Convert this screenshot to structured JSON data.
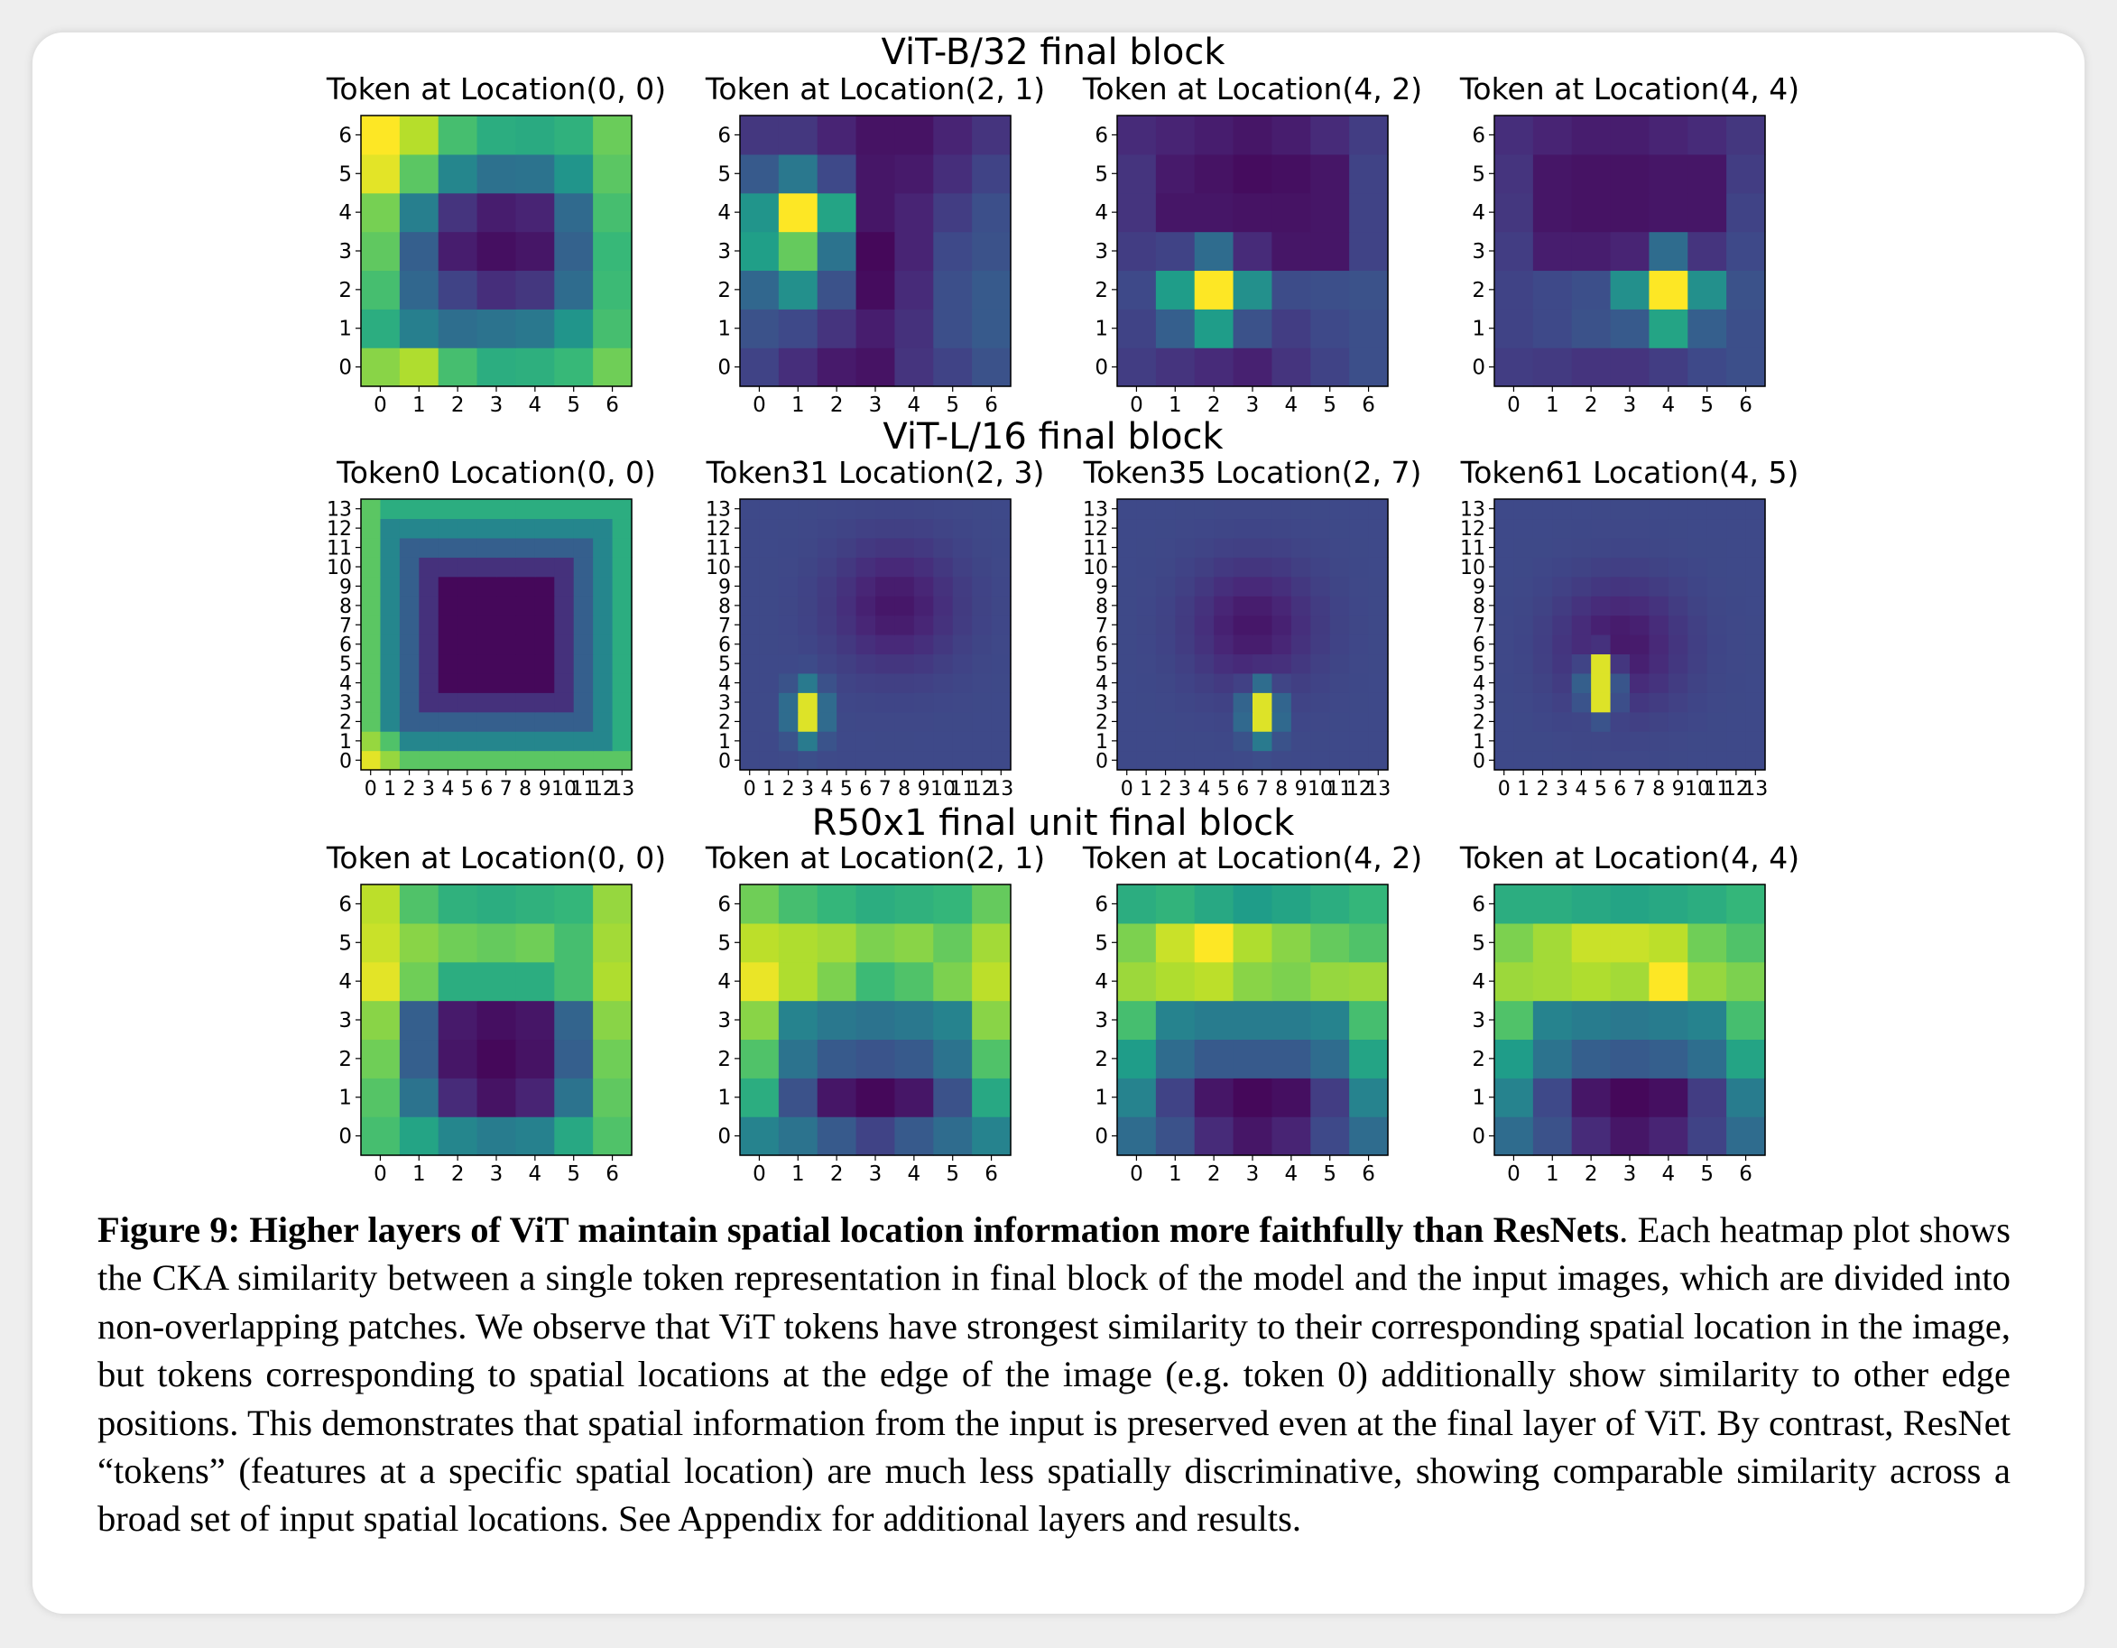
{
  "colors": {
    "background": "#ffffff",
    "page": "#eeeeee",
    "colormap": "viridis"
  },
  "chart_data": [
    {
      "type": "heatmap",
      "block": "ViT-B/32 final block",
      "grid": 7,
      "title": "Token at Location(0, 0)",
      "values": [
        [
          0.82,
          0.88,
          0.7,
          0.62,
          0.63,
          0.67,
          0.78
        ],
        [
          0.62,
          0.43,
          0.36,
          0.38,
          0.4,
          0.52,
          0.7
        ],
        [
          0.7,
          0.33,
          0.2,
          0.13,
          0.16,
          0.35,
          0.68
        ],
        [
          0.75,
          0.3,
          0.08,
          0.04,
          0.06,
          0.31,
          0.67
        ],
        [
          0.79,
          0.43,
          0.15,
          0.08,
          0.1,
          0.34,
          0.7
        ],
        [
          0.96,
          0.74,
          0.46,
          0.37,
          0.38,
          0.52,
          0.74
        ],
        [
          1.0,
          0.89,
          0.7,
          0.62,
          0.61,
          0.64,
          0.77
        ]
      ]
    },
    {
      "type": "heatmap",
      "block": "ViT-B/32 final block",
      "grid": 7,
      "title": "Token at Location(2, 1)",
      "values": [
        [
          0.2,
          0.13,
          0.07,
          0.05,
          0.15,
          0.2,
          0.25
        ],
        [
          0.25,
          0.22,
          0.15,
          0.08,
          0.14,
          0.24,
          0.28
        ],
        [
          0.33,
          0.5,
          0.25,
          0.03,
          0.12,
          0.24,
          0.28
        ],
        [
          0.56,
          0.76,
          0.38,
          0.02,
          0.1,
          0.22,
          0.25
        ],
        [
          0.52,
          1.0,
          0.58,
          0.06,
          0.1,
          0.18,
          0.24
        ],
        [
          0.28,
          0.4,
          0.22,
          0.06,
          0.07,
          0.13,
          0.2
        ],
        [
          0.16,
          0.16,
          0.1,
          0.05,
          0.05,
          0.1,
          0.15
        ]
      ]
    },
    {
      "type": "heatmap",
      "block": "ViT-B/32 final block",
      "grid": 7,
      "title": "Token at Location(4, 2)",
      "values": [
        [
          0.18,
          0.15,
          0.12,
          0.09,
          0.15,
          0.2,
          0.24
        ],
        [
          0.2,
          0.3,
          0.55,
          0.25,
          0.18,
          0.22,
          0.24
        ],
        [
          0.22,
          0.55,
          1.0,
          0.5,
          0.23,
          0.24,
          0.25
        ],
        [
          0.18,
          0.2,
          0.35,
          0.12,
          0.06,
          0.06,
          0.2
        ],
        [
          0.15,
          0.06,
          0.06,
          0.05,
          0.05,
          0.06,
          0.2
        ],
        [
          0.15,
          0.07,
          0.05,
          0.03,
          0.04,
          0.06,
          0.2
        ],
        [
          0.12,
          0.1,
          0.08,
          0.06,
          0.08,
          0.12,
          0.18
        ]
      ]
    },
    {
      "type": "heatmap",
      "block": "ViT-B/32 final block",
      "grid": 7,
      "title": "Token at Location(4, 4)",
      "values": [
        [
          0.18,
          0.17,
          0.15,
          0.15,
          0.18,
          0.22,
          0.24
        ],
        [
          0.2,
          0.22,
          0.25,
          0.28,
          0.58,
          0.3,
          0.24
        ],
        [
          0.2,
          0.22,
          0.24,
          0.5,
          1.0,
          0.5,
          0.25
        ],
        [
          0.18,
          0.08,
          0.08,
          0.1,
          0.35,
          0.15,
          0.22
        ],
        [
          0.16,
          0.06,
          0.05,
          0.05,
          0.06,
          0.06,
          0.2
        ],
        [
          0.15,
          0.06,
          0.05,
          0.05,
          0.06,
          0.06,
          0.18
        ],
        [
          0.13,
          0.1,
          0.08,
          0.08,
          0.1,
          0.12,
          0.16
        ]
      ]
    },
    {
      "type": "heatmap",
      "block": "ViT-L/16 final block",
      "grid": 14,
      "title": "Token0 Location(0, 0)",
      "pattern": {
        "kind": "edge-ring",
        "corner": [
          0,
          0
        ]
      }
    },
    {
      "type": "heatmap",
      "block": "ViT-L/16 final block",
      "grid": 14,
      "title": "Token31 Location(2, 3)",
      "pattern": {
        "kind": "peak",
        "center": [
          3,
          2.5
        ],
        "dark_center": [
          7.5,
          8
        ]
      }
    },
    {
      "type": "heatmap",
      "block": "ViT-L/16 final block",
      "grid": 14,
      "title": "Token35 Location(2, 7)",
      "pattern": {
        "kind": "peak",
        "center": [
          7,
          2.5
        ],
        "dark_center": [
          6.5,
          7
        ]
      }
    },
    {
      "type": "heatmap",
      "block": "ViT-L/16 final block",
      "grid": 14,
      "title": "Token61 Location(4, 5)",
      "pattern": {
        "kind": "peak",
        "center": [
          5,
          4
        ],
        "dark_center": [
          6,
          6
        ]
      }
    },
    {
      "type": "heatmap",
      "block": "R50x1 final unit final block",
      "grid": 7,
      "title": "Token at Location(0, 0)",
      "values": [
        [
          0.7,
          0.58,
          0.46,
          0.42,
          0.44,
          0.6,
          0.72
        ],
        [
          0.73,
          0.38,
          0.12,
          0.05,
          0.1,
          0.38,
          0.75
        ],
        [
          0.78,
          0.3,
          0.06,
          0.02,
          0.05,
          0.3,
          0.78
        ],
        [
          0.82,
          0.3,
          0.07,
          0.04,
          0.06,
          0.32,
          0.82
        ],
        [
          0.96,
          0.78,
          0.62,
          0.62,
          0.62,
          0.7,
          0.88
        ],
        [
          0.92,
          0.82,
          0.78,
          0.76,
          0.78,
          0.7,
          0.86
        ],
        [
          0.9,
          0.72,
          0.64,
          0.62,
          0.64,
          0.66,
          0.84
        ]
      ]
    },
    {
      "type": "heatmap",
      "block": "R50x1 final unit final block",
      "grid": 7,
      "title": "Token at Location(2, 1)",
      "values": [
        [
          0.45,
          0.38,
          0.28,
          0.2,
          0.28,
          0.35,
          0.45
        ],
        [
          0.62,
          0.25,
          0.06,
          0.02,
          0.06,
          0.25,
          0.6
        ],
        [
          0.72,
          0.38,
          0.28,
          0.26,
          0.28,
          0.38,
          0.72
        ],
        [
          0.82,
          0.45,
          0.4,
          0.38,
          0.4,
          0.45,
          0.82
        ],
        [
          0.97,
          0.88,
          0.8,
          0.68,
          0.72,
          0.8,
          0.9
        ],
        [
          0.9,
          0.88,
          0.86,
          0.8,
          0.82,
          0.76,
          0.86
        ],
        [
          0.78,
          0.7,
          0.66,
          0.62,
          0.64,
          0.66,
          0.76
        ]
      ]
    },
    {
      "type": "heatmap",
      "block": "R50x1 final unit final block",
      "grid": 7,
      "title": "Token at Location(4, 2)",
      "values": [
        [
          0.35,
          0.25,
          0.12,
          0.06,
          0.1,
          0.22,
          0.35
        ],
        [
          0.45,
          0.2,
          0.06,
          0.02,
          0.04,
          0.18,
          0.45
        ],
        [
          0.55,
          0.35,
          0.28,
          0.28,
          0.28,
          0.35,
          0.58
        ],
        [
          0.7,
          0.45,
          0.42,
          0.42,
          0.42,
          0.45,
          0.7
        ],
        [
          0.85,
          0.88,
          0.9,
          0.82,
          0.8,
          0.84,
          0.85
        ],
        [
          0.8,
          0.92,
          1.0,
          0.88,
          0.82,
          0.76,
          0.72
        ],
        [
          0.62,
          0.65,
          0.6,
          0.55,
          0.58,
          0.62,
          0.66
        ]
      ]
    },
    {
      "type": "heatmap",
      "block": "R50x1 final unit final block",
      "grid": 7,
      "title": "Token at Location(4, 4)",
      "values": [
        [
          0.35,
          0.25,
          0.12,
          0.06,
          0.1,
          0.2,
          0.35
        ],
        [
          0.45,
          0.22,
          0.06,
          0.02,
          0.04,
          0.18,
          0.42
        ],
        [
          0.55,
          0.38,
          0.3,
          0.28,
          0.3,
          0.36,
          0.58
        ],
        [
          0.72,
          0.45,
          0.42,
          0.4,
          0.42,
          0.45,
          0.7
        ],
        [
          0.85,
          0.86,
          0.88,
          0.86,
          1.0,
          0.84,
          0.8
        ],
        [
          0.8,
          0.86,
          0.92,
          0.92,
          0.9,
          0.78,
          0.72
        ],
        [
          0.62,
          0.62,
          0.6,
          0.58,
          0.6,
          0.62,
          0.66
        ]
      ]
    }
  ],
  "figure": {
    "row_titles": [
      "ViT-B/32 final block",
      "ViT-L/16 final block",
      "R50x1 final unit final block"
    ]
  },
  "caption": {
    "lead": "Figure 9: Higher layers of ViT maintain spatial location information more faithfully than ResNets",
    "body": ". Each heatmap plot shows the CKA similarity between a single token representation in final block of the model and the input images, which are divided into non-overlapping patches. We observe that ViT tokens have strongest similarity to their corresponding spatial location in the image, but tokens corresponding to spatial locations at the edge of the image (e.g. token 0) additionally show similarity to other edge positions. This demonstrates that spatial information from the input is preserved even at the final layer of ViT. By contrast, ResNet “tokens” (features at a specific spatial location) are much less spatially discriminative, showing comparable similarity across a broad set of input spatial locations. See Appendix for additional layers and results."
  }
}
